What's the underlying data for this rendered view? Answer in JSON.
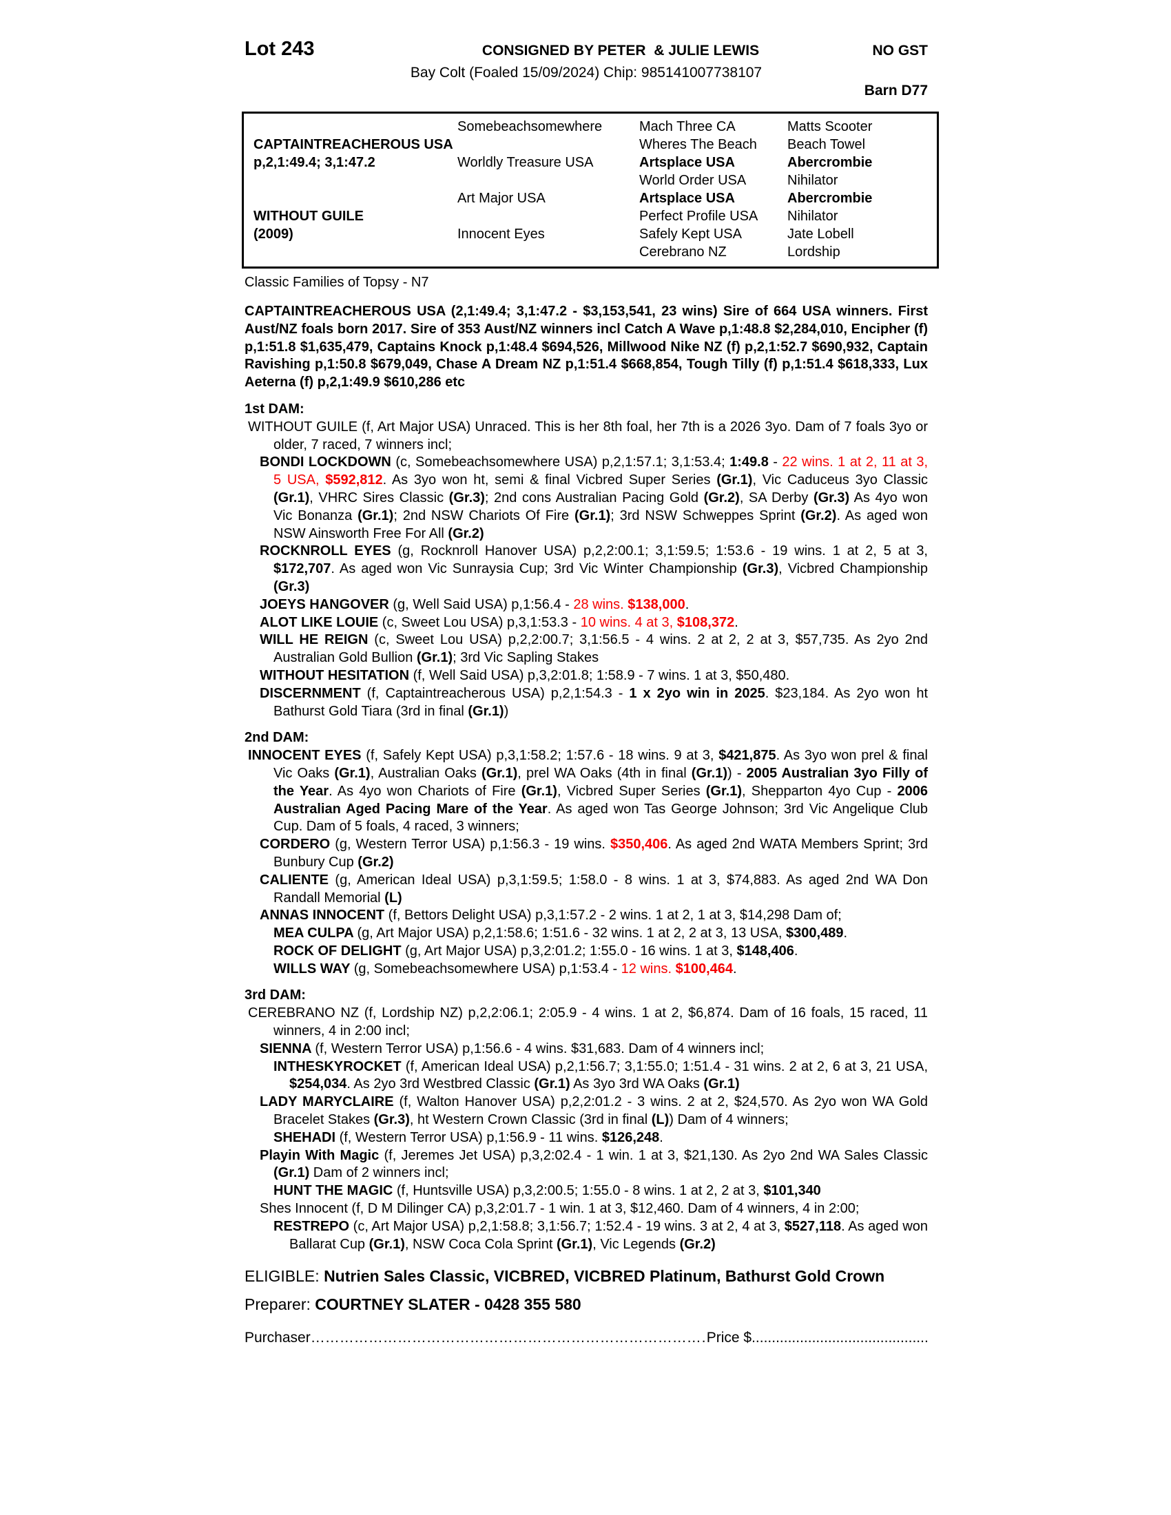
{
  "colors": {
    "highlight_red": "#f50000"
  },
  "header": {
    "lot": "Lot 243",
    "consignor": "CONSIGNED BY PETER  & JULIE LEWIS",
    "gst": "NO GST",
    "foal_info": "Bay Colt (Foaled 15/09/2024) Chip: 985141007738107",
    "barn": "Barn D77"
  },
  "pedigree_table": {
    "rows": [
      [
        {
          "text": "",
          "bold": false
        },
        {
          "text": "Somebeachsomewhere",
          "bold": false
        },
        {
          "text": "Mach Three CA",
          "bold": false
        },
        {
          "text": "Matts Scooter",
          "bold": false
        }
      ],
      [
        {
          "text": "CAPTAINTREACHEROUS USA",
          "bold": true
        },
        {
          "text": "",
          "bold": false
        },
        {
          "text": "Wheres The Beach",
          "bold": false
        },
        {
          "text": "Beach Towel",
          "bold": false
        }
      ],
      [
        {
          "text": "p,2,1:49.4; 3,1:47.2",
          "bold": true
        },
        {
          "text": "Worldly Treasure USA",
          "bold": false
        },
        {
          "text": "Artsplace USA",
          "bold": true
        },
        {
          "text": "Abercrombie",
          "bold": true
        }
      ],
      [
        {
          "text": "",
          "bold": false
        },
        {
          "text": "",
          "bold": false
        },
        {
          "text": "World Order USA",
          "bold": false
        },
        {
          "text": "Nihilator",
          "bold": false
        }
      ],
      [
        {
          "text": "",
          "bold": false
        },
        {
          "text": "Art Major USA",
          "bold": false
        },
        {
          "text": "Artsplace USA",
          "bold": true
        },
        {
          "text": "Abercrombie",
          "bold": true
        }
      ],
      [
        {
          "text": "WITHOUT GUILE",
          "bold": true
        },
        {
          "text": "",
          "bold": false
        },
        {
          "text": "Perfect Profile USA",
          "bold": false
        },
        {
          "text": "Nihilator",
          "bold": false
        }
      ],
      [
        {
          "text": "(2009)",
          "bold": true
        },
        {
          "text": "Innocent Eyes",
          "bold": false
        },
        {
          "text": "Safely Kept USA",
          "bold": false
        },
        {
          "text": "Jate Lobell",
          "bold": false
        }
      ],
      [
        {
          "text": "",
          "bold": false
        },
        {
          "text": "",
          "bold": false
        },
        {
          "text": "Cerebrano NZ",
          "bold": false
        },
        {
          "text": "Lordship",
          "bold": false
        }
      ]
    ]
  },
  "family_line": "Classic Families of Topsy - N7",
  "sire_paragraph": "CAPTAINTREACHEROUS USA (2,1:49.4; 3,1:47.2 - $3,153,541, 23 wins) Sire of 664 USA winners. First Aust/NZ foals born 2017. Sire of 353 Aust/NZ winners incl Catch A Wave p,1:48.8 $2,284,010, Encipher (f) p,1:51.8 $1,635,479, Captains Knock p,1:48.4 $694,526, Millwood Nike NZ (f) p,2,1:52.7 $690,932, Captain Ravishing p,1:50.8 $679,049, Chase A Dream NZ p,1:51.4 $668,854, Tough Tilly (f) p,1:51.4 $618,333, Lux Aeterna (f) p,2,1:49.9 $610,286 etc",
  "sections": [
    {
      "heading": "1st DAM:",
      "paragraphs": [
        {
          "level": "l0",
          "segments": [
            [
              "n",
              "WITHOUT GUILE (f, Art Major USA) Unraced. This is her 8th foal, her 7th is a 2026 3yo. Dam of 7 foals 3yo or older, 7 raced, 7 winners incl;"
            ]
          ]
        },
        {
          "level": "l1",
          "segments": [
            [
              "b",
              "BONDI LOCKDOWN "
            ],
            [
              "n",
              "(c, Somebeachsomewhere USA) p,2,1:57.1; 3,1:53.4; "
            ],
            [
              "b",
              "1:49.8"
            ],
            [
              "n",
              " - "
            ],
            [
              "r",
              "22 wins. 1 at 2, 11 at 3, 5 USA, "
            ],
            [
              "rb",
              "$592,812"
            ],
            [
              "n",
              ". As 3yo won ht, semi & final Vicbred Super Series "
            ],
            [
              "b",
              "(Gr.1)"
            ],
            [
              "n",
              ", Vic Caduceus 3yo Classic "
            ],
            [
              "b",
              "(Gr.1)"
            ],
            [
              "n",
              ", VHRC Sires Classic "
            ],
            [
              "b",
              "(Gr.3)"
            ],
            [
              "n",
              "; 2nd cons Australian Pacing Gold "
            ],
            [
              "b",
              "(Gr.2)"
            ],
            [
              "n",
              ", SA Derby "
            ],
            [
              "b",
              "(Gr.3)"
            ],
            [
              "n",
              " As 4yo won Vic Bonanza "
            ],
            [
              "b",
              "(Gr.1)"
            ],
            [
              "n",
              "; 2nd NSW Chariots Of Fire "
            ],
            [
              "b",
              "(Gr.1)"
            ],
            [
              "n",
              "; 3rd NSW Schweppes Sprint "
            ],
            [
              "b",
              "(Gr.2)"
            ],
            [
              "n",
              ". As aged won NSW Ainsworth Free For All "
            ],
            [
              "b",
              "(Gr.2)"
            ]
          ]
        },
        {
          "level": "l1",
          "segments": [
            [
              "b",
              "ROCKNROLL EYES "
            ],
            [
              "n",
              "(g, Rocknroll Hanover USA) p,2,2:00.1; 3,1:59.5; 1:53.6 - 19 wins. 1 at 2, 5 at 3, "
            ],
            [
              "b",
              "$172,707"
            ],
            [
              "n",
              ". As aged won Vic Sunraysia Cup; 3rd Vic Winter Championship "
            ],
            [
              "b",
              "(Gr.3)"
            ],
            [
              "n",
              ", Vicbred Championship "
            ],
            [
              "b",
              "(Gr.3)"
            ]
          ]
        },
        {
          "level": "l1",
          "segments": [
            [
              "b",
              "JOEYS HANGOVER "
            ],
            [
              "n",
              "(g, Well Said USA) p,1:56.4 - "
            ],
            [
              "r",
              "28 wins. "
            ],
            [
              "rb",
              "$138,000"
            ],
            [
              "n",
              "."
            ]
          ]
        },
        {
          "level": "l1",
          "segments": [
            [
              "b",
              "ALOT LIKE LOUIE "
            ],
            [
              "n",
              "(c, Sweet Lou USA) p,3,1:53.3 - "
            ],
            [
              "r",
              "10 wins. 4 at 3, "
            ],
            [
              "rb",
              "$108,372"
            ],
            [
              "n",
              "."
            ]
          ]
        },
        {
          "level": "l1",
          "segments": [
            [
              "b",
              "WILL HE REIGN "
            ],
            [
              "n",
              "(c, Sweet Lou USA) p,2,2:00.7; 3,1:56.5 - 4 wins. 2 at 2, 2 at 3, $57,735. As 2yo 2nd Australian Gold Bullion "
            ],
            [
              "b",
              "(Gr.1)"
            ],
            [
              "n",
              "; 3rd Vic Sapling Stakes"
            ]
          ]
        },
        {
          "level": "l1",
          "segments": [
            [
              "b",
              "WITHOUT HESITATION "
            ],
            [
              "n",
              "(f, Well Said USA) p,3,2:01.8; 1:58.9 - 7 wins. 1 at 3, $50,480."
            ]
          ]
        },
        {
          "level": "l1",
          "segments": [
            [
              "b",
              "DISCERNMENT "
            ],
            [
              "n",
              "(f, Captaintreacherous USA) p,2,1:54.3 - "
            ],
            [
              "b",
              "1 x 2yo win in 2025"
            ],
            [
              "n",
              ". $23,184. As 2yo won ht Bathurst Gold Tiara (3rd in final "
            ],
            [
              "b",
              "(Gr.1)"
            ],
            [
              "n",
              ")"
            ]
          ]
        }
      ]
    },
    {
      "heading": "2nd DAM:",
      "paragraphs": [
        {
          "level": "l0",
          "segments": [
            [
              "b",
              "INNOCENT EYES "
            ],
            [
              "n",
              "(f, Safely Kept USA) p,3,1:58.2; 1:57.6 - 18 wins. 9 at 3, "
            ],
            [
              "b",
              "$421,875"
            ],
            [
              "n",
              ". As 3yo won prel & final Vic Oaks "
            ],
            [
              "b",
              "(Gr.1)"
            ],
            [
              "n",
              ", Australian Oaks "
            ],
            [
              "b",
              "(Gr.1)"
            ],
            [
              "n",
              ", prel WA Oaks (4th in final "
            ],
            [
              "b",
              "(Gr.1)"
            ],
            [
              "n",
              ") - "
            ],
            [
              "b",
              "2005 Australian 3yo Filly of the Year"
            ],
            [
              "n",
              ". As 4yo won Chariots of Fire "
            ],
            [
              "b",
              "(Gr.1)"
            ],
            [
              "n",
              ", Vicbred Super Series "
            ],
            [
              "b",
              "(Gr.1)"
            ],
            [
              "n",
              ", Shepparton 4yo Cup - "
            ],
            [
              "b",
              "2006 Australian Aged Pacing Mare of the Year"
            ],
            [
              "n",
              ". As aged won Tas George Johnson; 3rd Vic Angelique Club Cup. Dam of 5 foals, 4 raced, 3 winners;"
            ]
          ]
        },
        {
          "level": "l1",
          "segments": [
            [
              "b",
              "CORDERO "
            ],
            [
              "n",
              "(g, Western Terror USA) p,1:56.3 - 19 wins. "
            ],
            [
              "rb",
              "$350,406"
            ],
            [
              "n",
              ". As aged 2nd WATA Members Sprint; 3rd Bunbury Cup "
            ],
            [
              "b",
              "(Gr.2)"
            ]
          ]
        },
        {
          "level": "l1",
          "segments": [
            [
              "b",
              "CALIENTE "
            ],
            [
              "n",
              "(g, American Ideal USA) p,3,1:59.5; 1:58.0 - 8 wins. 1 at 3, $74,883. As aged 2nd WA Don Randall Memorial "
            ],
            [
              "b",
              "(L)"
            ]
          ]
        },
        {
          "level": "l1",
          "segments": [
            [
              "b",
              "ANNAS INNOCENT "
            ],
            [
              "n",
              "(f, Bettors Delight USA) p,3,1:57.2 - 2 wins. 1 at 2, 1 at 3, $14,298 Dam of;"
            ]
          ]
        },
        {
          "level": "l2",
          "segments": [
            [
              "b",
              "MEA CULPA "
            ],
            [
              "n",
              "(g, Art Major USA) p,2,1:58.6; 1:51.6 - 32 wins. 1 at 2, 2 at 3, 13 USA, "
            ],
            [
              "b",
              "$300,489"
            ],
            [
              "n",
              "."
            ]
          ]
        },
        {
          "level": "l2",
          "segments": [
            [
              "b",
              "ROCK OF DELIGHT "
            ],
            [
              "n",
              "(g, Art Major USA) p,3,2:01.2; 1:55.0 - 16 wins. 1 at 3, "
            ],
            [
              "b",
              "$148,406"
            ],
            [
              "n",
              "."
            ]
          ]
        },
        {
          "level": "l2",
          "segments": [
            [
              "b",
              "WILLS WAY "
            ],
            [
              "n",
              "(g, Somebeachsomewhere USA) p,1:53.4 - "
            ],
            [
              "r",
              "12 wins. "
            ],
            [
              "rb",
              "$100,464"
            ],
            [
              "n",
              "."
            ]
          ]
        }
      ]
    },
    {
      "heading": "3rd DAM:",
      "paragraphs": [
        {
          "level": "l0",
          "segments": [
            [
              "n",
              "CEREBRANO NZ (f, Lordship NZ) p,2,2:06.1; 2:05.9 - 4 wins. 1 at 2, $6,874. Dam of 16 foals, 15 raced, 11 winners, 4 in 2:00 incl;"
            ]
          ]
        },
        {
          "level": "l1",
          "segments": [
            [
              "b",
              "SIENNA "
            ],
            [
              "n",
              "(f, Western Terror USA) p,1:56.6 - 4 wins. $31,683. Dam of 4 winners incl;"
            ]
          ]
        },
        {
          "level": "l2",
          "segments": [
            [
              "b",
              "INTHESKYROCKET "
            ],
            [
              "n",
              "(f, American Ideal USA) p,2,1:56.7; 3,1:55.0; 1:51.4 - 31 wins. 2 at 2, 6 at 3, 21 USA, "
            ],
            [
              "b",
              "$254,034"
            ],
            [
              "n",
              ". As 2yo 3rd Westbred Classic "
            ],
            [
              "b",
              "(Gr.1)"
            ],
            [
              "n",
              " As 3yo 3rd WA Oaks "
            ],
            [
              "b",
              "(Gr.1)"
            ]
          ]
        },
        {
          "level": "l1",
          "segments": [
            [
              "b",
              "LADY MARYCLAIRE "
            ],
            [
              "n",
              "(f, Walton Hanover USA) p,2,2:01.2 - 3 wins. 2 at 2, $24,570. As 2yo won WA Gold Bracelet Stakes "
            ],
            [
              "b",
              "(Gr.3)"
            ],
            [
              "n",
              ", ht Western Crown Classic (3rd in final "
            ],
            [
              "b",
              "(L)"
            ],
            [
              "n",
              ") Dam of 4 winners;"
            ]
          ]
        },
        {
          "level": "l2",
          "segments": [
            [
              "b",
              "SHEHADI "
            ],
            [
              "n",
              "(f, Western Terror USA) p,1:56.9 - 11 wins. "
            ],
            [
              "b",
              "$126,248"
            ],
            [
              "n",
              "."
            ]
          ]
        },
        {
          "level": "l1",
          "segments": [
            [
              "b",
              "Playin With Magic "
            ],
            [
              "n",
              "(f, Jeremes Jet USA) p,3,2:02.4 - 1 win. 1 at 3, $21,130. As 2yo 2nd WA Sales Classic "
            ],
            [
              "b",
              "(Gr.1)"
            ],
            [
              "n",
              " Dam of 2 winners incl;"
            ]
          ]
        },
        {
          "level": "l2",
          "segments": [
            [
              "b",
              "HUNT THE MAGIC "
            ],
            [
              "n",
              "(f, Huntsville USA) p,3,2:00.5; 1:55.0 - 8 wins. 1 at 2, 2 at 3, "
            ],
            [
              "b",
              "$101,340"
            ]
          ]
        },
        {
          "level": "l1",
          "segments": [
            [
              "n",
              "Shes Innocent (f, D M Dilinger CA) p,3,2:01.7 - 1 win. 1 at 3, $12,460. Dam of 4 winners, 4 in 2:00;"
            ]
          ]
        },
        {
          "level": "l2",
          "segments": [
            [
              "b",
              "RESTREPO "
            ],
            [
              "n",
              "(c, Art Major USA) p,2,1:58.8; 3,1:56.7; 1:52.4 - 19 wins. 3 at 2, 4 at 3, "
            ],
            [
              "b",
              "$527,118"
            ],
            [
              "n",
              ". As aged won Ballarat Cup "
            ],
            [
              "b",
              "(Gr.1)"
            ],
            [
              "n",
              ", NSW Coca Cola Sprint "
            ],
            [
              "b",
              "(Gr.1)"
            ],
            [
              "n",
              ", Vic Legends "
            ],
            [
              "b",
              "(Gr.2)"
            ]
          ]
        }
      ]
    }
  ],
  "eligible": {
    "label": "ELIGIBLE: ",
    "text": "Nutrien Sales Classic, VICBRED, VICBRED Platinum, Bathurst Gold Crown"
  },
  "preparer": {
    "label": "Preparer: ",
    "name": "COURTNEY SLATER - 0428 355 580"
  },
  "purchase_line": {
    "purchaser_label": "Purchaser",
    "purchaser_dots": "……………………………………………………………………………………………………………………………………",
    "price_label": "Price $",
    "price_dots": "........................................................................................................"
  }
}
